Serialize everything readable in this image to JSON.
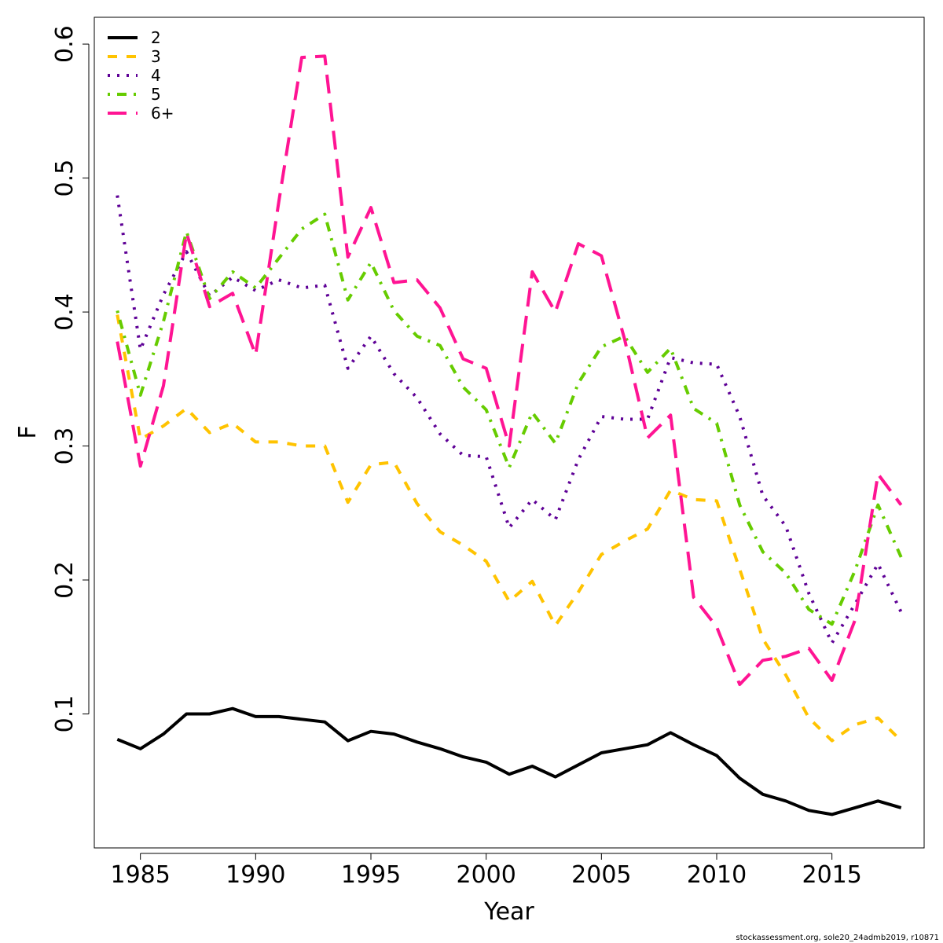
{
  "chart_data": {
    "type": "line",
    "title": "",
    "xlabel": "Year",
    "ylabel": "F",
    "xlim": [
      1983,
      2019
    ],
    "ylim": [
      0.0,
      0.62
    ],
    "x_ticks": [
      1985,
      1990,
      1995,
      2000,
      2005,
      2010,
      2015
    ],
    "y_ticks": [
      0.1,
      0.2,
      0.3,
      0.4,
      0.5,
      0.6
    ],
    "x_tick_labels": [
      "1985",
      "1990",
      "1995",
      "2000",
      "2005",
      "2010",
      "2015"
    ],
    "y_tick_labels": [
      "0.1",
      "0.2",
      "0.3",
      "0.4",
      "0.5",
      "0.6"
    ],
    "grid": false,
    "legend_position": "top-left",
    "x": [
      1984,
      1985,
      1986,
      1987,
      1988,
      1989,
      1990,
      1991,
      1992,
      1993,
      1994,
      1995,
      1996,
      1997,
      1998,
      1999,
      2000,
      2001,
      2002,
      2003,
      2004,
      2005,
      2006,
      2007,
      2008,
      2009,
      2010,
      2011,
      2012,
      2013,
      2014,
      2015,
      2016,
      2017,
      2018
    ],
    "series": [
      {
        "name": "2",
        "color": "#000000",
        "dash": "solid",
        "values": [
          0.081,
          0.074,
          0.085,
          0.1,
          0.1,
          0.104,
          0.098,
          0.098,
          0.096,
          0.094,
          0.08,
          0.087,
          0.085,
          0.079,
          0.074,
          0.068,
          0.064,
          0.055,
          0.061,
          0.053,
          0.062,
          0.071,
          0.074,
          0.077,
          0.086,
          0.077,
          0.069,
          0.052,
          0.04,
          0.035,
          0.028,
          0.025,
          0.03,
          0.035,
          0.03
        ]
      },
      {
        "name": "3",
        "color": "#FFC300",
        "dash": "dashed",
        "values": [
          0.398,
          0.305,
          0.315,
          0.328,
          0.31,
          0.317,
          0.303,
          0.303,
          0.3,
          0.3,
          0.258,
          0.286,
          0.288,
          0.257,
          0.236,
          0.226,
          0.214,
          0.184,
          0.199,
          0.166,
          0.191,
          0.219,
          0.229,
          0.238,
          0.267,
          0.26,
          0.259,
          0.208,
          0.156,
          0.129,
          0.097,
          0.08,
          0.092,
          0.097,
          0.08
        ]
      },
      {
        "name": "4",
        "color": "#5E0096",
        "dash": "dotted",
        "values": [
          0.487,
          0.372,
          0.413,
          0.445,
          0.412,
          0.426,
          0.416,
          0.424,
          0.418,
          0.42,
          0.358,
          0.382,
          0.354,
          0.336,
          0.309,
          0.293,
          0.292,
          0.239,
          0.26,
          0.245,
          0.29,
          0.322,
          0.32,
          0.32,
          0.366,
          0.362,
          0.361,
          0.322,
          0.263,
          0.24,
          0.19,
          0.153,
          0.182,
          0.212,
          0.176
        ]
      },
      {
        "name": "5",
        "color": "#66CC00",
        "dash": "dashdot",
        "values": [
          0.401,
          0.338,
          0.393,
          0.46,
          0.41,
          0.43,
          0.418,
          0.44,
          0.462,
          0.473,
          0.409,
          0.437,
          0.401,
          0.382,
          0.375,
          0.344,
          0.327,
          0.284,
          0.325,
          0.302,
          0.347,
          0.374,
          0.382,
          0.355,
          0.373,
          0.328,
          0.317,
          0.256,
          0.221,
          0.205,
          0.178,
          0.167,
          0.207,
          0.256,
          0.217
        ]
      },
      {
        "name": "6+",
        "color": "#FF1493",
        "dash": "longdash",
        "values": [
          0.378,
          0.285,
          0.345,
          0.459,
          0.404,
          0.414,
          0.368,
          0.482,
          0.59,
          0.591,
          0.441,
          0.478,
          0.422,
          0.424,
          0.403,
          0.365,
          0.358,
          0.3,
          0.43,
          0.4,
          0.451,
          0.442,
          0.38,
          0.306,
          0.323,
          0.187,
          0.165,
          0.122,
          0.14,
          0.143,
          0.149,
          0.125,
          0.17,
          0.279,
          0.256
        ]
      }
    ]
  },
  "footer": {
    "text": "stockassessment.org, sole20_24admb2019, r10871"
  }
}
